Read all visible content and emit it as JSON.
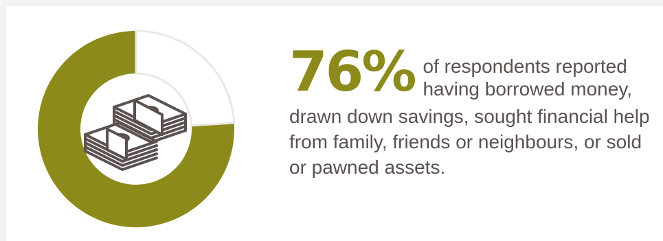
{
  "chart_data": {
    "type": "pie",
    "donut": true,
    "values": [
      76,
      24
    ],
    "colors": [
      "#8b8a1a",
      "#ffffff"
    ],
    "ring_outline_color": "#e8e8e8",
    "center_icon": "money-stack-icon",
    "icon_color": "#5b5150"
  },
  "stat": {
    "value": "76%",
    "lead": "of respondents reported having borrowed money,",
    "rest": "drawn down savings, sought financial help from family, friends or neighbours, or sold or pawned assets."
  },
  "colors": {
    "accent": "#8b8a1a",
    "text": "#5b5150"
  }
}
